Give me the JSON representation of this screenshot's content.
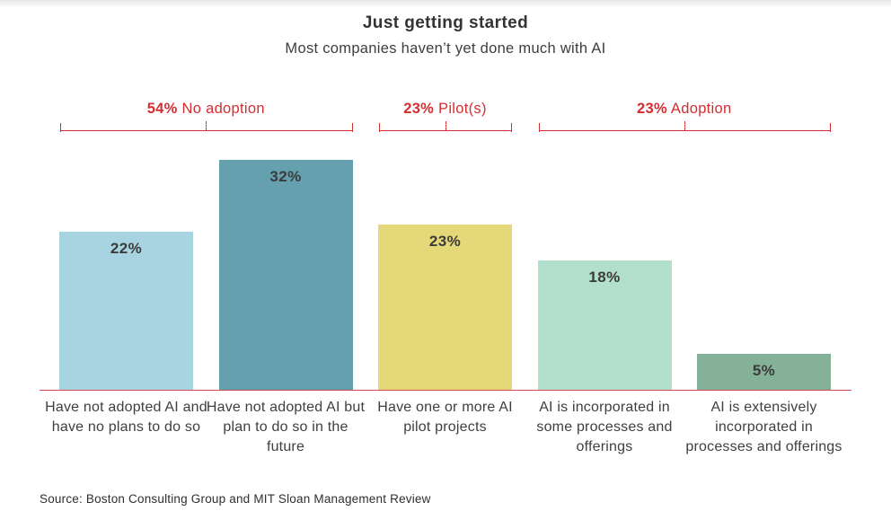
{
  "header": {
    "title": "Just getting started",
    "subtitle": "Most companies haven’t yet done much with AI"
  },
  "chart_data": {
    "type": "bar",
    "title": "Just getting started",
    "subtitle": "Most companies haven’t yet done much with AI",
    "categories": [
      "Have not adopted AI and have no plans to do so",
      "Have not adopted AI but plan to do so in the future",
      "Have one or more AI pilot projects",
      "AI is incorporated in some processes and offerings",
      "AI is extensively incorporated in processes and offerings"
    ],
    "values": [
      22,
      32,
      23,
      18,
      5
    ],
    "value_labels": [
      "22%",
      "32%",
      "23%",
      "18%",
      "5%"
    ],
    "bar_colors": [
      "#a7d4e0",
      "#64a0ad",
      "#e5d878",
      "#b2e0cd",
      "#85b198"
    ],
    "groups": [
      {
        "pct": "54%",
        "label": "No adoption",
        "from": 0,
        "to": 1
      },
      {
        "pct": "23%",
        "label": "Pilot(s)",
        "from": 2,
        "to": 2
      },
      {
        "pct": "23%",
        "label": "Adoption",
        "from": 3,
        "to": 4
      }
    ],
    "xlabel": "",
    "ylabel": "",
    "ylim": [
      0,
      35
    ],
    "grid": false,
    "legend": "none",
    "accent_color": "#d62d30",
    "axis_color": "#cf4a50",
    "value_label_color": "#3b3b3b"
  },
  "footer": {
    "source": "Source: Boston Consulting Group and MIT Sloan Management Review"
  }
}
